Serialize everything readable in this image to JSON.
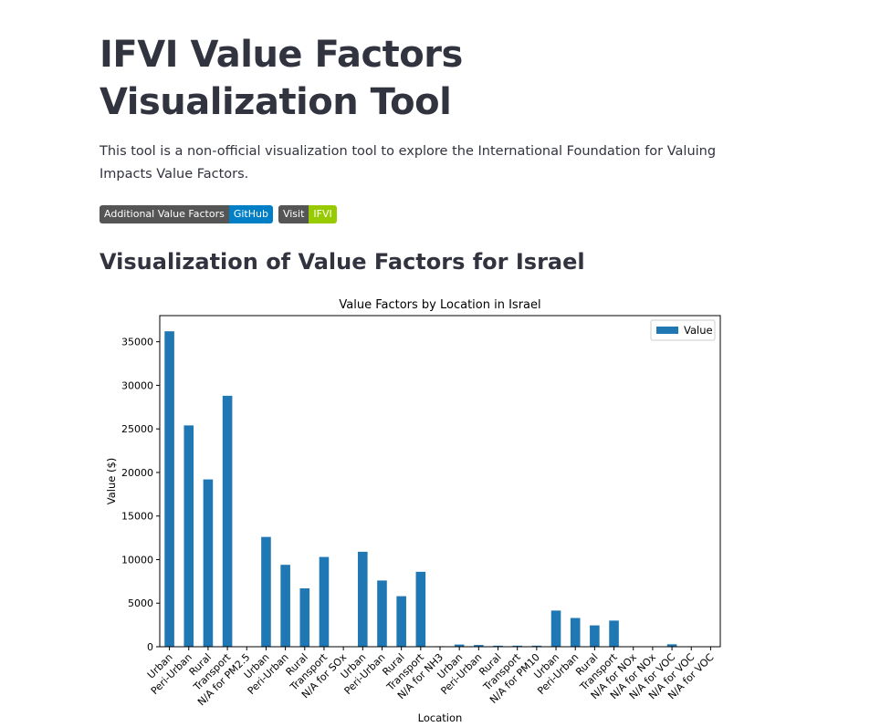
{
  "header": {
    "title": "IFVI Value Factors Visualization Tool",
    "intro": "This tool is a non-official visualization tool to explore the International Foundation for Valuing Impacts Value Factors."
  },
  "badges": [
    {
      "left": "Additional Value Factors",
      "right": "GitHub"
    },
    {
      "left": "Visit",
      "right": "IFVI"
    }
  ],
  "section": {
    "title": "Visualization of Value Factors for Israel"
  },
  "chart_data": {
    "type": "bar",
    "title": "Value Factors by Location in Israel",
    "xlabel": "Location",
    "ylabel": "Value ($)",
    "ylim": [
      0,
      38000
    ],
    "yticks": [
      0,
      5000,
      10000,
      15000,
      20000,
      25000,
      30000,
      35000
    ],
    "legend": {
      "placement": "top-right",
      "entries": [
        "Value"
      ]
    },
    "bar_color": "#1f77b4",
    "grid": false,
    "categories": [
      "Urban",
      "Peri-Urban",
      "Rural",
      "Transport",
      "N/A for PM2.5",
      "Urban",
      "Peri-Urban",
      "Rural",
      "Transport",
      "N/A for SOx",
      "Urban",
      "Peri-Urban",
      "Rural",
      "Transport",
      "N/A for NH3",
      "Urban",
      "Peri-Urban",
      "Rural",
      "Transport",
      "N/A for PM10",
      "Urban",
      "Peri-Urban",
      "Rural",
      "Transport",
      "N/A for NOx",
      "N/A for NOx",
      "N/A for VOC",
      "N/A for VOC",
      "N/A for VOC"
    ],
    "series": [
      {
        "name": "Value",
        "values": [
          36200,
          25400,
          19200,
          28800,
          0,
          12600,
          9400,
          6700,
          10300,
          50,
          10900,
          7600,
          5800,
          8600,
          60,
          250,
          200,
          120,
          120,
          120,
          4150,
          3300,
          2450,
          3000,
          0,
          0,
          280,
          0,
          0
        ]
      }
    ]
  }
}
